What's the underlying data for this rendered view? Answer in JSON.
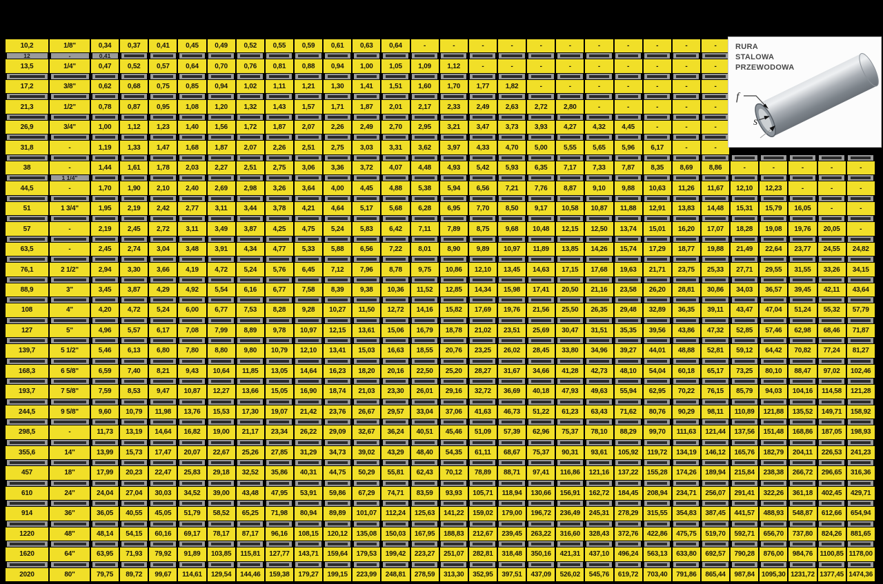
{
  "page": {
    "background": "#000000",
    "row_yellow": "#f1df28",
    "obscured_chip": "#9a9a9a"
  },
  "info_box": {
    "line1": "RURA",
    "line2": "STALOWA",
    "line3": "PRZEWODOWA",
    "label_f": "f",
    "label_s": "s"
  },
  "table": {
    "rows": [
      {
        "type": "data",
        "mm": "10,2",
        "inch": "1/8\"",
        "values": [
          "0,34",
          "0,37",
          "0,41",
          "0,45",
          "0,49",
          "0,52",
          "0,55",
          "0,59",
          "0,61",
          "0,63",
          "0,64",
          "-",
          "-",
          "-",
          "-",
          "-",
          "-",
          "-",
          "-",
          "-",
          "-",
          "-"
        ]
      },
      {
        "type": "obscured",
        "mm": "12",
        "inch": "-",
        "cols": 22,
        "frags": {
          "0": "0,41"
        }
      },
      {
        "type": "data",
        "mm": "13,5",
        "inch": "1/4\"",
        "values": [
          "0,47",
          "0,52",
          "0,57",
          "0,64",
          "0,70",
          "0,76",
          "0,81",
          "0,88",
          "0,94",
          "1,00",
          "1,05",
          "1,09",
          "1,12",
          "-",
          "-",
          "-",
          "-",
          "-",
          "-",
          "-",
          "-",
          "-"
        ]
      },
      {
        "type": "obscured",
        "mm": null,
        "inch": null,
        "cols": 22
      },
      {
        "type": "data",
        "mm": "17,2",
        "inch": "3/8\"",
        "values": [
          "0,62",
          "0,68",
          "0,75",
          "0,85",
          "0,94",
          "1,02",
          "1,11",
          "1,21",
          "1,30",
          "1,41",
          "1,51",
          "1,60",
          "1,70",
          "1,77",
          "1,82",
          "-",
          "-",
          "-",
          "-",
          "-",
          "-",
          "-"
        ]
      },
      {
        "type": "obscured",
        "mm": null,
        "inch": null,
        "cols": 22
      },
      {
        "type": "data",
        "mm": "21,3",
        "inch": "1/2\"",
        "values": [
          "0,78",
          "0,87",
          "0,95",
          "1,08",
          "1,20",
          "1,32",
          "1,43",
          "1,57",
          "1,71",
          "1,87",
          "2,01",
          "2,17",
          "2,33",
          "2,49",
          "2,63",
          "2,72",
          "2,80",
          "-",
          "-",
          "-",
          "-",
          "-"
        ]
      },
      {
        "type": "obscured",
        "mm": null,
        "inch": null,
        "cols": 22
      },
      {
        "type": "data",
        "mm": "26,9",
        "inch": "3/4\"",
        "values": [
          "1,00",
          "1,12",
          "1,23",
          "1,40",
          "1,56",
          "1,72",
          "1,87",
          "2,07",
          "2,26",
          "2,49",
          "2,70",
          "2,95",
          "3,21",
          "3,47",
          "3,73",
          "3,93",
          "4,27",
          "4,32",
          "4,45",
          "-",
          "-",
          "-"
        ]
      },
      {
        "type": "obscured",
        "mm": null,
        "inch": null,
        "cols": 22
      },
      {
        "type": "data",
        "mm": "31,8",
        "inch": "-",
        "values": [
          "1,19",
          "1,33",
          "1,47",
          "1,68",
          "1,87",
          "2,07",
          "2,26",
          "2,51",
          "2,75",
          "3,03",
          "3,31",
          "3,62",
          "3,97",
          "4,33",
          "4,70",
          "5,00",
          "5,55",
          "5,65",
          "5,96",
          "6,17",
          "-",
          "-"
        ]
      },
      {
        "type": "obscured",
        "mm": null,
        "inch": null,
        "cols": 27
      },
      {
        "type": "data",
        "mm": "38",
        "inch": "-",
        "values": [
          "1,44",
          "1,61",
          "1,78",
          "2,03",
          "2,27",
          "2,51",
          "2,75",
          "3,06",
          "3,36",
          "3,72",
          "4,07",
          "4,48",
          "4,93",
          "5,42",
          "5,93",
          "6,35",
          "7,17",
          "7,33",
          "7,87",
          "8,35",
          "8,69",
          "8,86",
          "-",
          "-",
          "-",
          "-",
          "-"
        ]
      },
      {
        "type": "obscured",
        "mm": null,
        "inch": "1 1/4\"",
        "cols": 27
      },
      {
        "type": "data",
        "mm": "44,5",
        "inch": "-",
        "values": [
          "1,70",
          "1,90",
          "2,10",
          "2,40",
          "2,69",
          "2,98",
          "3,26",
          "3,64",
          "4,00",
          "4,45",
          "4,88",
          "5,38",
          "5,94",
          "6,56",
          "7,21",
          "7,76",
          "8,87",
          "9,10",
          "9,88",
          "10,63",
          "11,26",
          "11,67",
          "12,10",
          "12,23",
          "-",
          "-",
          "-"
        ]
      },
      {
        "type": "obscured",
        "mm": null,
        "inch": null,
        "cols": 27
      },
      {
        "type": "data",
        "mm": "51",
        "inch": "1 3/4\"",
        "values": [
          "1,95",
          "2,19",
          "2,42",
          "2,77",
          "3,11",
          "3,44",
          "3,78",
          "4,21",
          "4,64",
          "5,17",
          "5,68",
          "6,28",
          "6,95",
          "7,70",
          "8,50",
          "9,17",
          "10,58",
          "10,87",
          "11,88",
          "12,91",
          "13,83",
          "14,48",
          "15,31",
          "15,79",
          "16,05",
          "-",
          "-"
        ]
      },
      {
        "type": "obscured",
        "mm": null,
        "inch": null,
        "cols": 27
      },
      {
        "type": "data",
        "mm": "57",
        "inch": "-",
        "values": [
          "2,19",
          "2,45",
          "2,72",
          "3,11",
          "3,49",
          "3,87",
          "4,25",
          "4,75",
          "5,24",
          "5,83",
          "6,42",
          "7,11",
          "7,89",
          "8,75",
          "9,68",
          "10,48",
          "12,15",
          "12,50",
          "13,74",
          "15,01",
          "16,20",
          "17,07",
          "18,28",
          "19,08",
          "19,76",
          "20,05",
          "-"
        ]
      },
      {
        "type": "obscured",
        "mm": null,
        "inch": null,
        "cols": 27
      },
      {
        "type": "data",
        "mm": "63,5",
        "inch": "-",
        "values": [
          "2,45",
          "2,74",
          "3,04",
          "3,48",
          "3,91",
          "4,34",
          "4,77",
          "5,33",
          "5,88",
          "6,56",
          "7,22",
          "8,01",
          "8,90",
          "9,89",
          "10,97",
          "11,89",
          "13,85",
          "14,26",
          "15,74",
          "17,29",
          "18,77",
          "19,88",
          "21,49",
          "22,64",
          "23,77",
          "24,55",
          "24,82"
        ]
      },
      {
        "type": "obscured",
        "mm": null,
        "inch": null,
        "cols": 27
      },
      {
        "type": "data",
        "mm": "76,1",
        "inch": "2 1/2\"",
        "values": [
          "2,94",
          "3,30",
          "3,66",
          "4,19",
          "4,72",
          "5,24",
          "5,76",
          "6,45",
          "7,12",
          "7,96",
          "8,78",
          "9,75",
          "10,86",
          "12,10",
          "13,45",
          "14,63",
          "17,15",
          "17,68",
          "19,63",
          "21,71",
          "23,75",
          "25,33",
          "27,71",
          "29,55",
          "31,55",
          "33,26",
          "34,15"
        ]
      },
      {
        "type": "obscured",
        "mm": null,
        "inch": null,
        "cols": 27
      },
      {
        "type": "data",
        "mm": "88,9",
        "inch": "3\"",
        "values": [
          "3,45",
          "3,87",
          "4,29",
          "4,92",
          "5,54",
          "6,16",
          "6,77",
          "7,58",
          "8,39",
          "9,38",
          "10,36",
          "11,52",
          "12,85",
          "14,34",
          "15,98",
          "17,41",
          "20,50",
          "21,16",
          "23,58",
          "26,20",
          "28,81",
          "30,86",
          "34,03",
          "36,57",
          "39,45",
          "42,11",
          "43,64"
        ]
      },
      {
        "type": "obscured",
        "mm": null,
        "inch": null,
        "cols": 27
      },
      {
        "type": "data",
        "mm": "108",
        "inch": "4\"",
        "values": [
          "4,20",
          "4,72",
          "5,24",
          "6,00",
          "6,77",
          "7,53",
          "8,28",
          "9,28",
          "10,27",
          "11,50",
          "12,72",
          "14,16",
          "15,82",
          "17,69",
          "19,76",
          "21,56",
          "25,50",
          "26,35",
          "29,48",
          "32,89",
          "36,35",
          "39,11",
          "43,47",
          "47,04",
          "51,24",
          "55,32",
          "57,79"
        ]
      },
      {
        "type": "obscured",
        "mm": null,
        "inch": null,
        "cols": 27
      },
      {
        "type": "data",
        "mm": "127",
        "inch": "5\"",
        "values": [
          "4,96",
          "5,57",
          "6,17",
          "7,08",
          "7,99",
          "8,89",
          "9,78",
          "10,97",
          "12,15",
          "13,61",
          "15,06",
          "16,79",
          "18,78",
          "21,02",
          "23,51",
          "25,69",
          "30,47",
          "31,51",
          "35,35",
          "39,56",
          "43,86",
          "47,32",
          "52,85",
          "57,46",
          "62,98",
          "68,46",
          "71,87"
        ]
      },
      {
        "type": "obscured",
        "mm": null,
        "inch": null,
        "cols": 27
      },
      {
        "type": "data",
        "mm": "139,7",
        "inch": "5 1/2\"",
        "values": [
          "5,46",
          "6,13",
          "6,80",
          "7,80",
          "8,80",
          "9,80",
          "10,79",
          "12,10",
          "13,41",
          "15,03",
          "16,63",
          "18,55",
          "20,76",
          "23,25",
          "26,02",
          "28,45",
          "33,80",
          "34,96",
          "39,27",
          "44,01",
          "48,88",
          "52,81",
          "59,12",
          "64,42",
          "70,82",
          "77,24",
          "81,27"
        ]
      },
      {
        "type": "obscured",
        "mm": null,
        "inch": null,
        "cols": 27
      },
      {
        "type": "data",
        "mm": "168,3",
        "inch": "6 5/8\"",
        "values": [
          "6,59",
          "7,40",
          "8,21",
          "9,43",
          "10,64",
          "11,85",
          "13,05",
          "14,64",
          "16,23",
          "18,20",
          "20,16",
          "22,50",
          "25,20",
          "28,27",
          "31,67",
          "34,66",
          "41,28",
          "42,73",
          "48,10",
          "54,04",
          "60,18",
          "65,17",
          "73,25",
          "80,10",
          "88,47",
          "97,02",
          "102,46"
        ]
      },
      {
        "type": "obscured",
        "mm": null,
        "inch": null,
        "cols": 27
      },
      {
        "type": "data",
        "mm": "193,7",
        "inch": "7 5/8\"",
        "values": [
          "7,59",
          "8,53",
          "9,47",
          "10,87",
          "12,27",
          "13,66",
          "15,05",
          "16,90",
          "18,74",
          "21,03",
          "23,30",
          "26,01",
          "29,16",
          "32,72",
          "36,69",
          "40,18",
          "47,93",
          "49,63",
          "55,94",
          "62,95",
          "70,22",
          "76,15",
          "85,79",
          "94,03",
          "104,16",
          "114,58",
          "121,28"
        ]
      },
      {
        "type": "obscured",
        "mm": null,
        "inch": null,
        "cols": 27
      },
      {
        "type": "data",
        "mm": "244,5",
        "inch": "9 5/8\"",
        "values": [
          "9,60",
          "10,79",
          "11,98",
          "13,76",
          "15,53",
          "17,30",
          "19,07",
          "21,42",
          "23,76",
          "26,67",
          "29,57",
          "33,04",
          "37,06",
          "41,63",
          "46,73",
          "51,22",
          "61,23",
          "63,43",
          "71,62",
          "80,76",
          "90,29",
          "98,11",
          "110,89",
          "121,88",
          "135,52",
          "149,71",
          "158,92"
        ]
      },
      {
        "type": "obscured",
        "mm": null,
        "inch": null,
        "cols": 27
      },
      {
        "type": "data",
        "mm": "298,5",
        "inch": "-",
        "values": [
          "11,73",
          "13,19",
          "14,64",
          "16,82",
          "19,00",
          "21,17",
          "23,34",
          "26,22",
          "29,09",
          "32,67",
          "36,24",
          "40,51",
          "45,46",
          "51,09",
          "57,39",
          "62,96",
          "75,37",
          "78,10",
          "88,29",
          "99,70",
          "111,63",
          "121,44",
          "137,56",
          "151,48",
          "168,86",
          "187,05",
          "198,93"
        ]
      },
      {
        "type": "obscured",
        "mm": null,
        "inch": null,
        "cols": 27
      },
      {
        "type": "data",
        "mm": "355,6",
        "inch": "14\"",
        "values": [
          "13,99",
          "15,73",
          "17,47",
          "20,07",
          "22,67",
          "25,26",
          "27,85",
          "31,29",
          "34,73",
          "39,02",
          "43,29",
          "48,40",
          "54,35",
          "61,11",
          "68,67",
          "75,37",
          "90,31",
          "93,61",
          "105,92",
          "119,72",
          "134,19",
          "146,12",
          "165,76",
          "182,79",
          "204,11",
          "226,53",
          "241,23"
        ]
      },
      {
        "type": "obscured",
        "mm": null,
        "inch": null,
        "cols": 27
      },
      {
        "type": "data",
        "mm": "457",
        "inch": "18\"",
        "values": [
          "17,99",
          "20,23",
          "22,47",
          "25,83",
          "29,18",
          "32,52",
          "35,86",
          "40,31",
          "44,75",
          "50,29",
          "55,81",
          "62,43",
          "70,12",
          "78,89",
          "88,71",
          "97,41",
          "116,86",
          "121,16",
          "137,22",
          "155,28",
          "174,26",
          "189,94",
          "215,84",
          "238,38",
          "266,72",
          "296,65",
          "316,36"
        ]
      },
      {
        "type": "obscured",
        "mm": null,
        "inch": null,
        "cols": 27
      },
      {
        "type": "data",
        "mm": "610",
        "inch": "24\"",
        "values": [
          "24,04",
          "27,04",
          "30,03",
          "34,52",
          "39,00",
          "43,48",
          "47,95",
          "53,91",
          "59,86",
          "67,29",
          "74,71",
          "83,59",
          "93,93",
          "105,71",
          "118,94",
          "130,66",
          "156,91",
          "162,72",
          "184,45",
          "208,94",
          "234,71",
          "256,07",
          "291,41",
          "322,26",
          "361,18",
          "402,45",
          "429,71"
        ]
      },
      {
        "type": "obscured",
        "mm": null,
        "inch": null,
        "cols": 27
      },
      {
        "type": "data",
        "mm": "914",
        "inch": "36\"",
        "values": [
          "36,05",
          "40,55",
          "45,05",
          "51,79",
          "58,52",
          "65,25",
          "71,98",
          "80,94",
          "89,89",
          "101,07",
          "112,24",
          "125,63",
          "141,22",
          "159,02",
          "179,00",
          "196,72",
          "236,49",
          "245,31",
          "278,29",
          "315,55",
          "354,83",
          "387,45",
          "441,57",
          "488,93",
          "548,87",
          "612,66",
          "654,94"
        ]
      },
      {
        "type": "obscured",
        "mm": null,
        "inch": null,
        "cols": 27
      },
      {
        "type": "data",
        "mm": "1220",
        "inch": "48\"",
        "values": [
          "48,14",
          "54,15",
          "60,16",
          "69,17",
          "78,17",
          "87,17",
          "96,16",
          "108,15",
          "120,12",
          "135,08",
          "150,03",
          "167,95",
          "188,83",
          "212,67",
          "239,45",
          "263,22",
          "316,60",
          "328,43",
          "372,76",
          "422,86",
          "475,75",
          "519,70",
          "592,71",
          "656,70",
          "737,80",
          "824,26",
          "881,65"
        ]
      },
      {
        "type": "obscured",
        "mm": null,
        "inch": null,
        "cols": 27
      },
      {
        "type": "data",
        "mm": "1620",
        "inch": "64\"",
        "values": [
          "63,95",
          "71,93",
          "79,92",
          "91,89",
          "103,85",
          "115,81",
          "127,77",
          "143,71",
          "159,64",
          "179,53",
          "199,42",
          "223,27",
          "251,07",
          "282,81",
          "318,48",
          "350,16",
          "421,31",
          "437,10",
          "496,24",
          "563,13",
          "633,80",
          "692,57",
          "790,28",
          "876,00",
          "984,76",
          "1100,85",
          "1178,00"
        ]
      },
      {
        "type": "obscured",
        "mm": null,
        "inch": null,
        "cols": 27
      },
      {
        "type": "data",
        "mm": "2020",
        "inch": "80\"",
        "values": [
          "79,75",
          "89,72",
          "99,67",
          "114,61",
          "129,54",
          "144,46",
          "159,38",
          "179,27",
          "199,15",
          "223,99",
          "248,81",
          "278,59",
          "313,30",
          "352,95",
          "397,51",
          "437,09",
          "526,02",
          "545,76",
          "619,72",
          "703,40",
          "791,86",
          "865,44",
          "987,84",
          "1095,30",
          "1231,72",
          "1377,45",
          "1474,36"
        ]
      }
    ]
  }
}
